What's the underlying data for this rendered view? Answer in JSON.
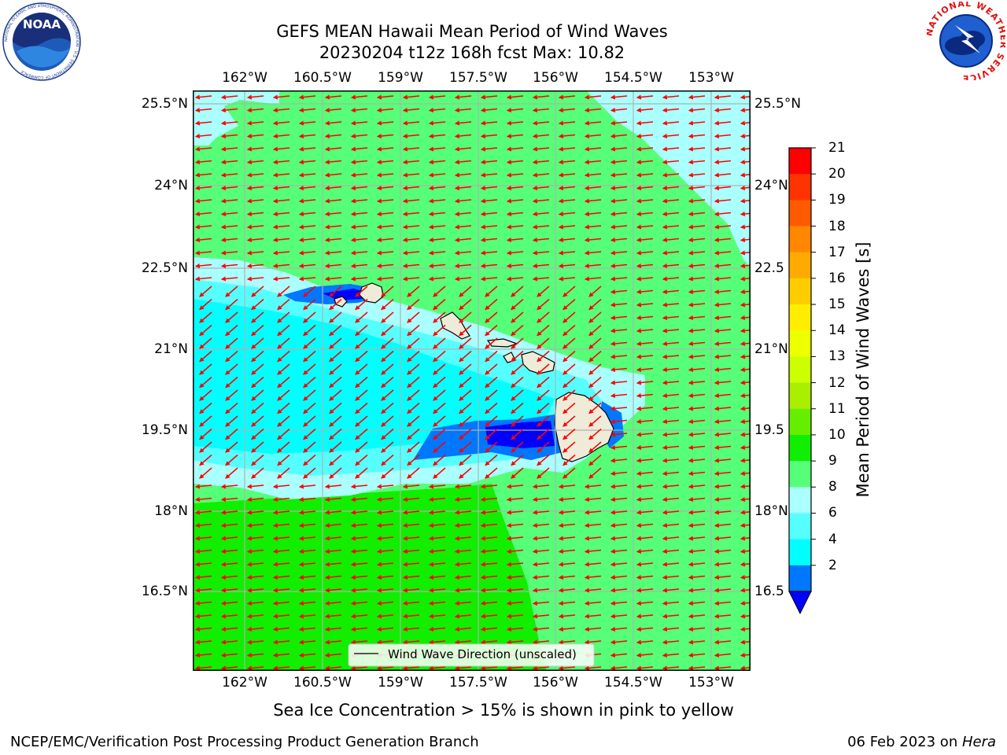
{
  "header": {
    "title_line1": "GEFS MEAN Hawaii Mean Period of Wind Waves",
    "title_line2": "20230204 t12z 168h fcst   Max: 10.82"
  },
  "map": {
    "lon_ticks": [
      "162°W",
      "160.5°W",
      "159°W",
      "157.5°W",
      "156°W",
      "154.5°W",
      "153°W"
    ],
    "lat_ticks": [
      "25.5°N",
      "24°N",
      "22.5°N",
      "21°N",
      "19.5°N",
      "18°N",
      "16.5°N"
    ],
    "lat_ticks_right": [
      "25.5°N",
      "24°N",
      "22.5",
      "21°N",
      "19.5",
      "18°N",
      "16.5"
    ],
    "legend_label": "Wind Wave Direction (unscaled)",
    "arrow_color": "#ff0000",
    "land_color": "#efebd9"
  },
  "colorbar": {
    "ticks": [
      "21",
      "20",
      "19",
      "18",
      "17",
      "16",
      "15",
      "14",
      "13",
      "12",
      "11",
      "10",
      "9",
      "8",
      "6",
      "4",
      "2"
    ],
    "colors": [
      "#ff0000",
      "#ff3300",
      "#ff5a00",
      "#ff8800",
      "#ffaa00",
      "#ffcc00",
      "#ffee00",
      "#eeff00",
      "#ccff00",
      "#aaee00",
      "#66ee00",
      "#11ee00",
      "#55ff77",
      "#aaffff",
      "#55ffff",
      "#00ffff",
      "#0077ff"
    ],
    "under_color": "#0000ff",
    "label": "Mean Period of Wind Waves [s]"
  },
  "notes": {
    "sea_ice": "Sea Ice Concentration > 15% is shown in pink to yellow"
  },
  "footer": {
    "left": "NCEP/EMC/Verification Post Processing Product Generation Branch",
    "right_prefix": "06 Feb 2023 on ",
    "right_host": "Hera"
  },
  "logos": {
    "noaa_text": "NOAA",
    "noaa_ring": "NATIONAL OCEANIC AND ATMOSPHERIC ADMINISTRATION · U.S. DEPARTMENT OF COMMERCE",
    "nws_ring": "NATIONAL WEATHER SERVICE"
  }
}
